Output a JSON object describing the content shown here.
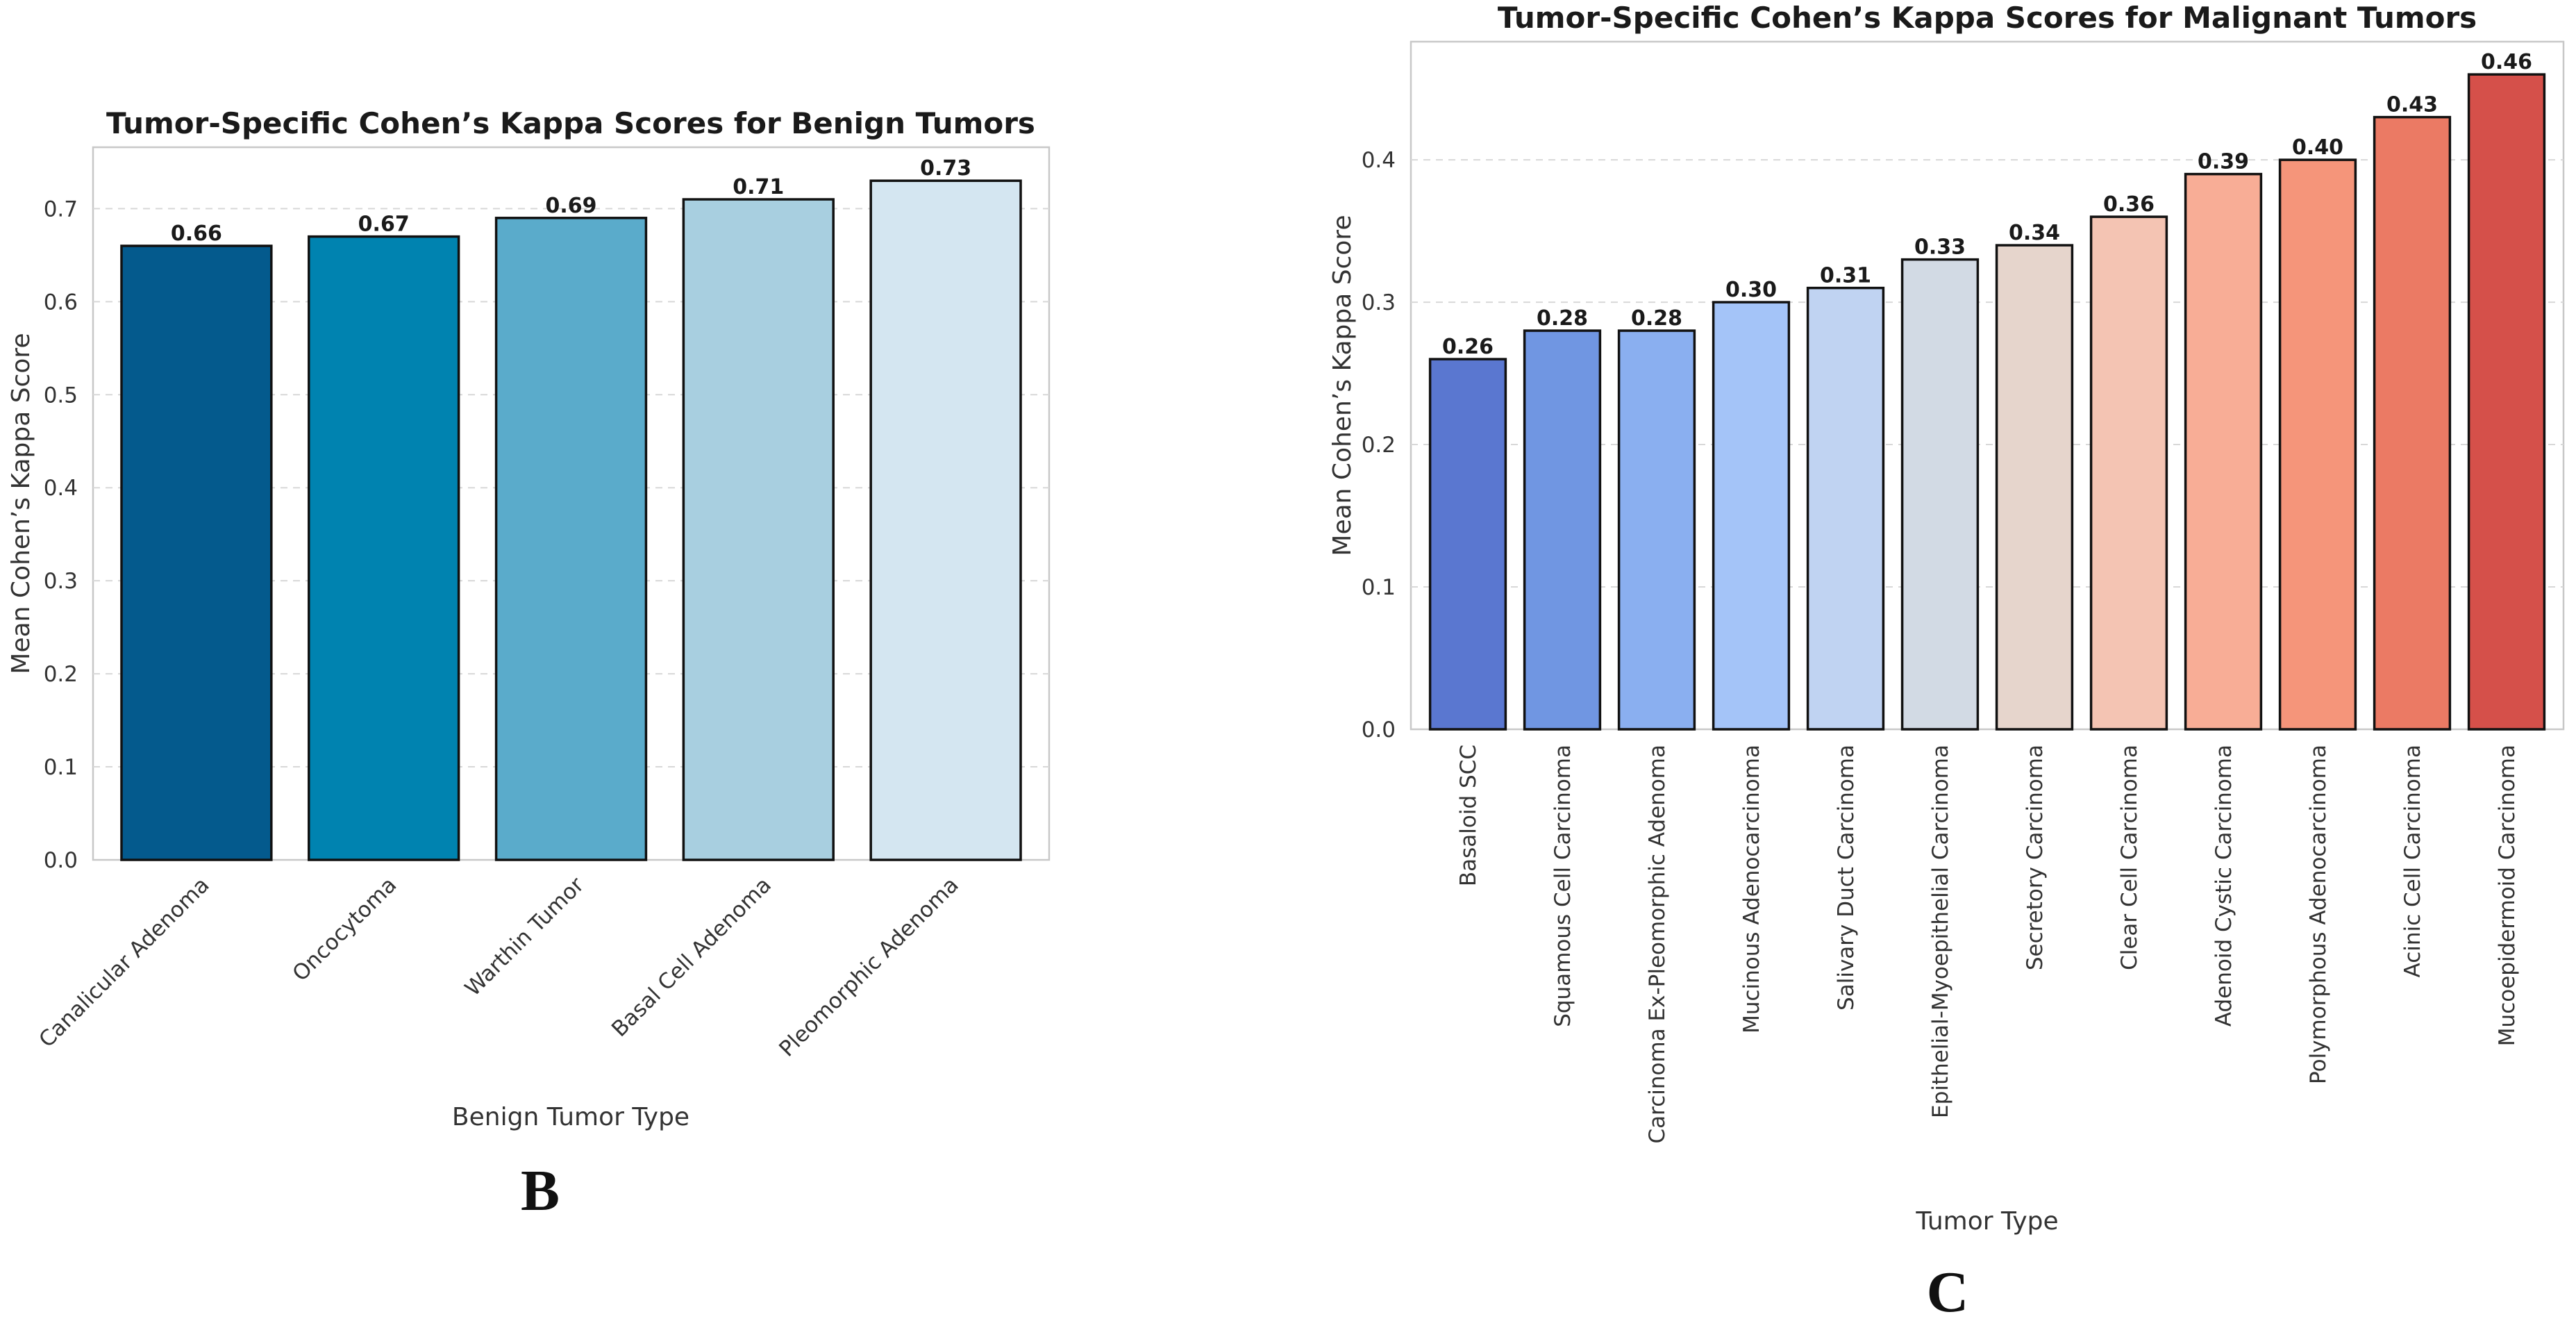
{
  "chart_data": [
    {
      "type": "bar",
      "title": "Tumor-Specific Cohen’s Kappa Scores for Benign Tumors",
      "xlabel": "Benign Tumor Type",
      "ylabel": "Mean Cohen’s Kappa Score",
      "ylim": [
        0,
        0.766
      ],
      "yticks": [
        "0.0",
        "0.1",
        "0.2",
        "0.3",
        "0.4",
        "0.5",
        "0.6",
        "0.7"
      ],
      "grid": true,
      "panel_label": "B",
      "categories": [
        "Canalicular Adenoma",
        "Oncocytoma",
        "Warthin Tumor",
        "Basal Cell Adenoma",
        "Pleomorphic Adenoma"
      ],
      "values": [
        0.66,
        0.67,
        0.69,
        0.71,
        0.73
      ],
      "value_labels": [
        "0.66",
        "0.67",
        "0.69",
        "0.71",
        "0.73"
      ],
      "colors": [
        "#045a8d",
        "#0083b0",
        "#5aabcb",
        "#a8cfe0",
        "#d4e6f1"
      ]
    },
    {
      "type": "bar",
      "title": "Tumor-Specific Cohen’s Kappa Scores for Malignant Tumors",
      "xlabel": "Tumor Type",
      "ylabel": "Mean Cohen’s Kappa Score",
      "ylim": [
        0,
        0.483
      ],
      "yticks": [
        "0.0",
        "0.1",
        "0.2",
        "0.3",
        "0.4"
      ],
      "grid": true,
      "panel_label": "C",
      "categories": [
        "Basaloid SCC",
        "Squamous Cell Carcinoma",
        "Carcinoma Ex-Pleomorphic Adenoma",
        "Mucinous Adenocarcinoma",
        "Salivary Duct Carcinoma",
        "Epithelial-Myoepithelial Carcinoma",
        "Secretory Carcinoma",
        "Clear Cell Carcinoma",
        "Adenoid Cystic Carcinoma",
        "Polymorphous Adenocarcinoma",
        "Acinic Cell Carcinoma",
        "Mucoepidermoid Carcinoma"
      ],
      "values": [
        0.26,
        0.28,
        0.28,
        0.3,
        0.31,
        0.33,
        0.34,
        0.36,
        0.39,
        0.4,
        0.43,
        0.46
      ],
      "value_labels": [
        "0.26",
        "0.28",
        "0.28",
        "0.30",
        "0.31",
        "0.33",
        "0.34",
        "0.36",
        "0.39",
        "0.40",
        "0.43",
        "0.46"
      ],
      "colors": [
        "#5a77d0",
        "#7096e2",
        "#8aaff0",
        "#a4c4f8",
        "#c0d3f2",
        "#d2dae4",
        "#e6d5cc",
        "#f4c4b3",
        "#f8ad96",
        "#f5957a",
        "#eb7a64",
        "#d5504a"
      ]
    }
  ]
}
